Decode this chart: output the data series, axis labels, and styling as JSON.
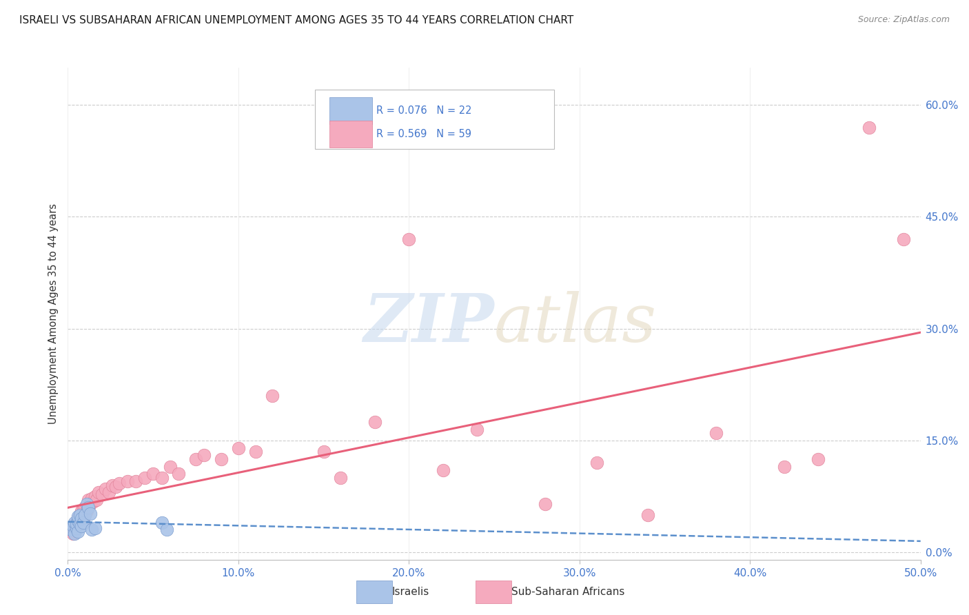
{
  "title": "ISRAELI VS SUBSAHARAN AFRICAN UNEMPLOYMENT AMONG AGES 35 TO 44 YEARS CORRELATION CHART",
  "source": "Source: ZipAtlas.com",
  "ylabel": "Unemployment Among Ages 35 to 44 years",
  "xlim": [
    0.0,
    0.5
  ],
  "ylim": [
    -0.01,
    0.65
  ],
  "xticks": [
    0.0,
    0.1,
    0.2,
    0.3,
    0.4,
    0.5
  ],
  "xtick_labels": [
    "0.0%",
    "10.0%",
    "20.0%",
    "30.0%",
    "40.0%",
    "50.0%"
  ],
  "yticks": [
    0.0,
    0.15,
    0.3,
    0.45,
    0.6
  ],
  "ytick_labels": [
    "0.0%",
    "15.0%",
    "30.0%",
    "45.0%",
    "60.0%"
  ],
  "grid_color": "#cccccc",
  "background_color": "#ffffff",
  "legend_r_israeli": "R = 0.076",
  "legend_n_israeli": "N = 22",
  "legend_r_subsaharan": "R = 0.569",
  "legend_n_subsaharan": "N = 59",
  "israeli_color": "#aac4e8",
  "subsaharan_color": "#f5aabe",
  "israeli_line_color": "#5b8fcc",
  "subsaharan_line_color": "#e8607a",
  "israeli_points_x": [
    0.002,
    0.003,
    0.004,
    0.004,
    0.005,
    0.005,
    0.006,
    0.006,
    0.006,
    0.007,
    0.007,
    0.008,
    0.008,
    0.009,
    0.01,
    0.011,
    0.012,
    0.013,
    0.014,
    0.016,
    0.055,
    0.058
  ],
  "israeli_points_y": [
    0.03,
    0.035,
    0.025,
    0.04,
    0.032,
    0.038,
    0.028,
    0.042,
    0.048,
    0.038,
    0.05,
    0.035,
    0.045,
    0.04,
    0.05,
    0.065,
    0.06,
    0.052,
    0.03,
    0.032,
    0.04,
    0.03
  ],
  "subsaharan_points_x": [
    0.002,
    0.003,
    0.003,
    0.004,
    0.004,
    0.005,
    0.005,
    0.006,
    0.006,
    0.007,
    0.007,
    0.008,
    0.008,
    0.009,
    0.009,
    0.01,
    0.01,
    0.011,
    0.012,
    0.012,
    0.013,
    0.014,
    0.015,
    0.016,
    0.017,
    0.018,
    0.02,
    0.022,
    0.024,
    0.026,
    0.028,
    0.03,
    0.035,
    0.04,
    0.045,
    0.05,
    0.055,
    0.06,
    0.065,
    0.075,
    0.08,
    0.09,
    0.1,
    0.11,
    0.12,
    0.15,
    0.16,
    0.18,
    0.2,
    0.22,
    0.24,
    0.28,
    0.31,
    0.34,
    0.38,
    0.42,
    0.44,
    0.47,
    0.49
  ],
  "subsaharan_points_y": [
    0.03,
    0.032,
    0.025,
    0.038,
    0.028,
    0.04,
    0.035,
    0.045,
    0.038,
    0.042,
    0.05,
    0.048,
    0.055,
    0.04,
    0.058,
    0.05,
    0.06,
    0.055,
    0.06,
    0.07,
    0.065,
    0.072,
    0.068,
    0.075,
    0.07,
    0.08,
    0.078,
    0.085,
    0.08,
    0.09,
    0.088,
    0.092,
    0.095,
    0.095,
    0.1,
    0.105,
    0.1,
    0.115,
    0.105,
    0.125,
    0.13,
    0.125,
    0.14,
    0.135,
    0.21,
    0.135,
    0.1,
    0.175,
    0.42,
    0.11,
    0.165,
    0.065,
    0.12,
    0.05,
    0.16,
    0.115,
    0.125,
    0.57,
    0.42
  ]
}
